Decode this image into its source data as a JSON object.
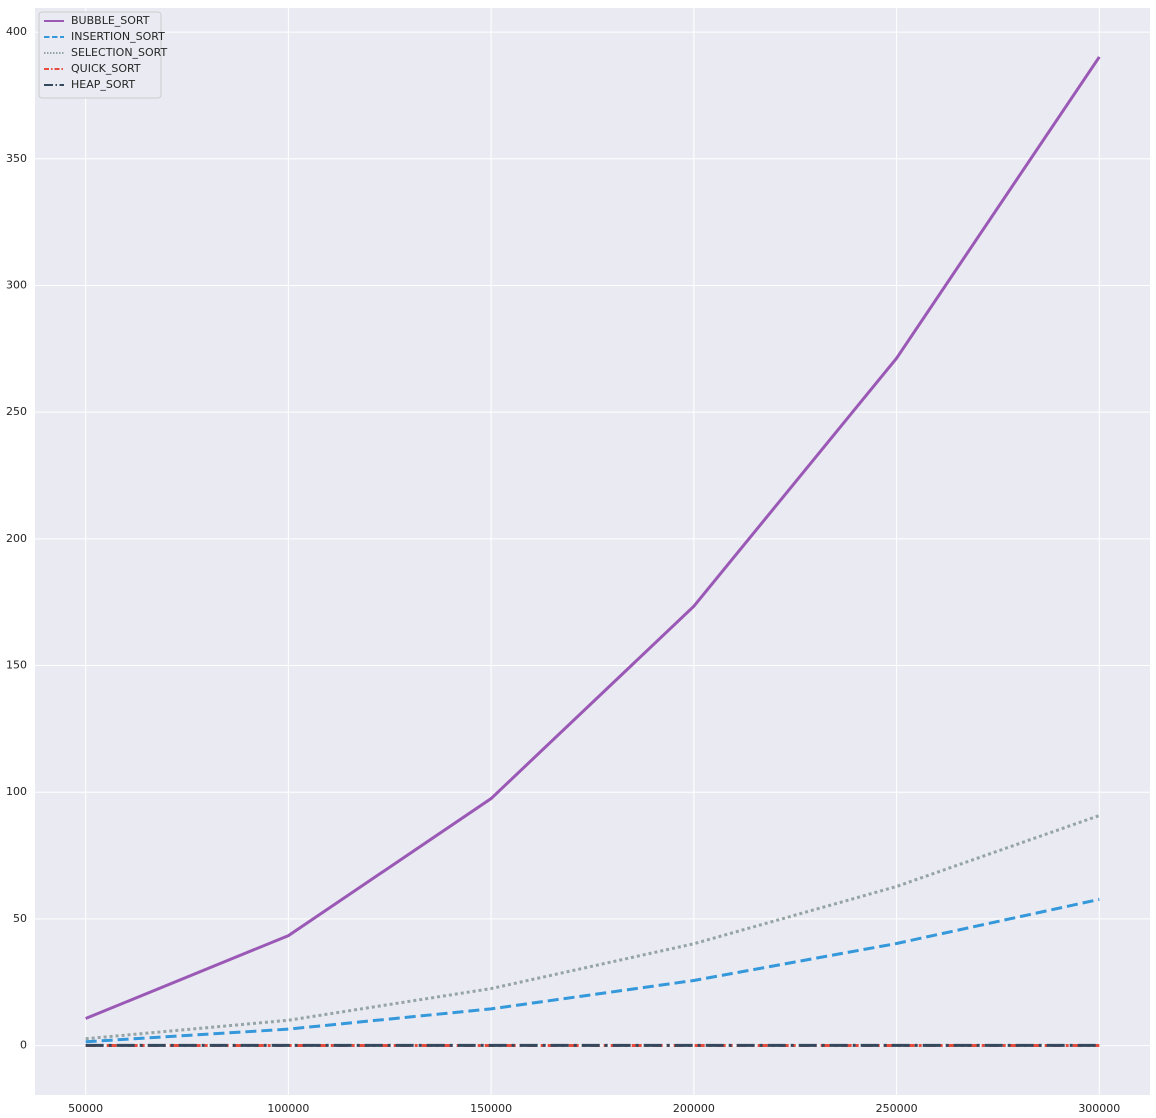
{
  "chart_data": {
    "type": "line",
    "x": [
      50000,
      100000,
      150000,
      200000,
      250000,
      300000
    ],
    "series": [
      {
        "name": "BUBBLE_SORT",
        "color": "#9b59b6",
        "dash": "solid",
        "values": [
          10.7,
          43.4,
          97.5,
          173.4,
          271.3,
          390.2
        ]
      },
      {
        "name": "INSERTION_SORT",
        "color": "#3498db",
        "dash": "dashed",
        "values": [
          1.5,
          6.5,
          14.5,
          25.7,
          40.3,
          57.7
        ]
      },
      {
        "name": "SELECTION_SORT",
        "color": "#95a5a6",
        "dash": "dotted",
        "values": [
          2.7,
          10,
          22.5,
          40.2,
          62.8,
          90.8
        ]
      },
      {
        "name": "QUICK_SORT",
        "color": "#e74c3c",
        "dash": "dashdot",
        "values": [
          0.05,
          0.05,
          0.05,
          0.05,
          0.05,
          0.05
        ]
      },
      {
        "name": "HEAP_SORT",
        "color": "#34495e",
        "dash": "longdashdot",
        "values": [
          0.1,
          0.1,
          0.1,
          0.1,
          0.1,
          0.1
        ]
      }
    ],
    "xlim": [
      37500,
      312500
    ],
    "xticks": [
      50000,
      100000,
      150000,
      200000,
      250000,
      300000
    ],
    "ylim": [
      -19.5,
      409.5
    ],
    "yticks": [
      0,
      50,
      100,
      150,
      200,
      250,
      300,
      350,
      400
    ],
    "grid": true,
    "legend": "upper-left"
  }
}
